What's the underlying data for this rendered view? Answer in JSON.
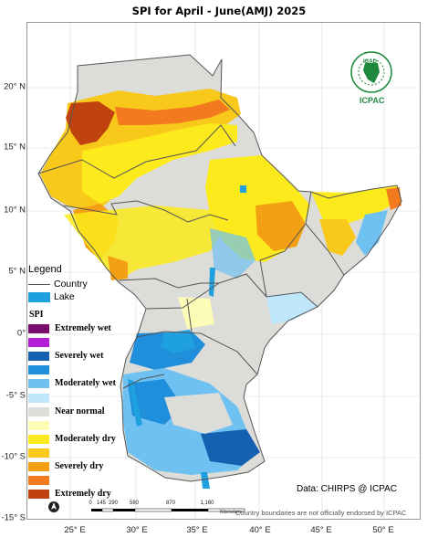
{
  "title": "SPI   for April - June(AMJ) 2025",
  "lat_labels": [
    "20° N",
    "15° N",
    "10° N",
    "5° N",
    "0°",
    "-5° S",
    "-10° S",
    "-15° S"
  ],
  "lon_labels": [
    "25° E",
    "30° E",
    "35° E",
    "40° E",
    "45° E",
    "50° E"
  ],
  "legend": {
    "title": "Legend",
    "country": "Country",
    "lake": "Lake",
    "spi_title": "SPI",
    "classes": [
      {
        "label": "Extremely wet",
        "color": "#7b0b6d"
      },
      {
        "label": "",
        "color": "#b41ed6"
      },
      {
        "label": "Severely wet",
        "color": "#1560b0"
      },
      {
        "label": "",
        "color": "#1f8fdc"
      },
      {
        "label": "Moderately wet",
        "color": "#6fc1f1"
      },
      {
        "label": "",
        "color": "#bfe7fb"
      },
      {
        "label": "Near normal",
        "color": "#dcdcd8"
      },
      {
        "label": "",
        "color": "#fdfcb6"
      },
      {
        "label": "Moderately dry",
        "color": "#fcea1c"
      },
      {
        "label": "",
        "color": "#f8c81a"
      },
      {
        "label": "Severely dry",
        "color": "#f4a014"
      },
      {
        "label": "",
        "color": "#f47a1f"
      },
      {
        "label": "Extremely dry",
        "color": "#c0420f"
      }
    ]
  },
  "credit": "Data: CHIRPS @ ICPAC",
  "disclaimer": "Country boundaries are not officially endorsed by ICPAC",
  "scale": {
    "labels": [
      "0",
      "145",
      "290",
      "580",
      "870",
      "1,160"
    ],
    "unit": "Kilometers"
  },
  "logo": {
    "top": "IGAD",
    "bottom": "ICPAC"
  }
}
